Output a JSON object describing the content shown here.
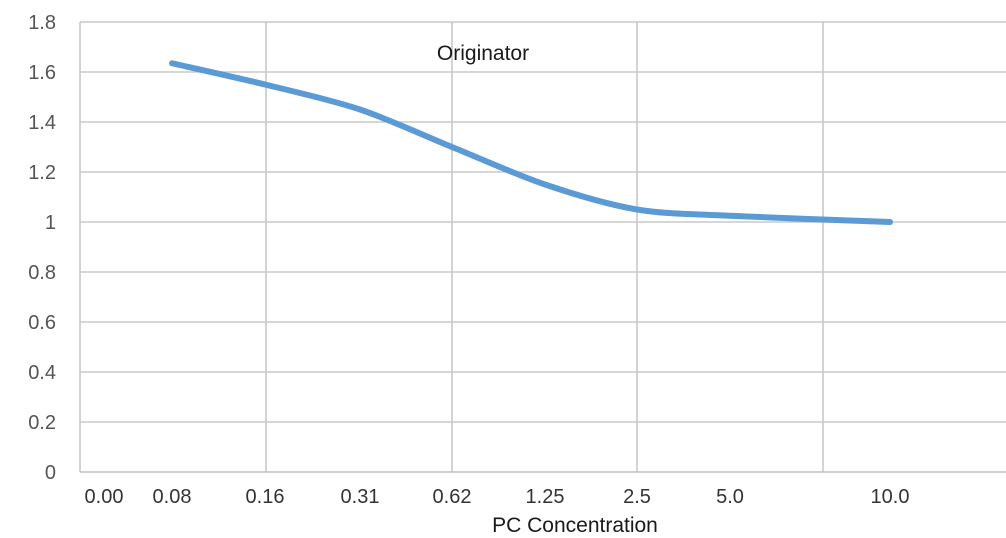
{
  "chart_data": {
    "type": "line",
    "title": "",
    "xlabel": "PC Concentration",
    "ylabel": "",
    "categories": [
      "0.00",
      "0.08",
      "0.16",
      "0.31",
      "0.62",
      "1.25",
      "2.5",
      "5.0",
      "10.0"
    ],
    "series": [
      {
        "name": "Originator",
        "color": "#5b9bd5",
        "x": [
          "0.08",
          "0.16",
          "0.31",
          "0.62",
          "1.25",
          "2.5",
          "5.0",
          "10.0"
        ],
        "values": [
          1.635,
          1.55,
          1.45,
          1.3,
          1.15,
          1.05,
          1.025,
          1.0
        ]
      }
    ],
    "y_ticks": [
      "0",
      "0.2",
      "0.4",
      "0.6",
      "0.8",
      "1",
      "1.2",
      "1.4",
      "1.6",
      "1.8"
    ],
    "ylim": [
      0,
      1.8
    ],
    "grid": true,
    "legend": "none"
  }
}
